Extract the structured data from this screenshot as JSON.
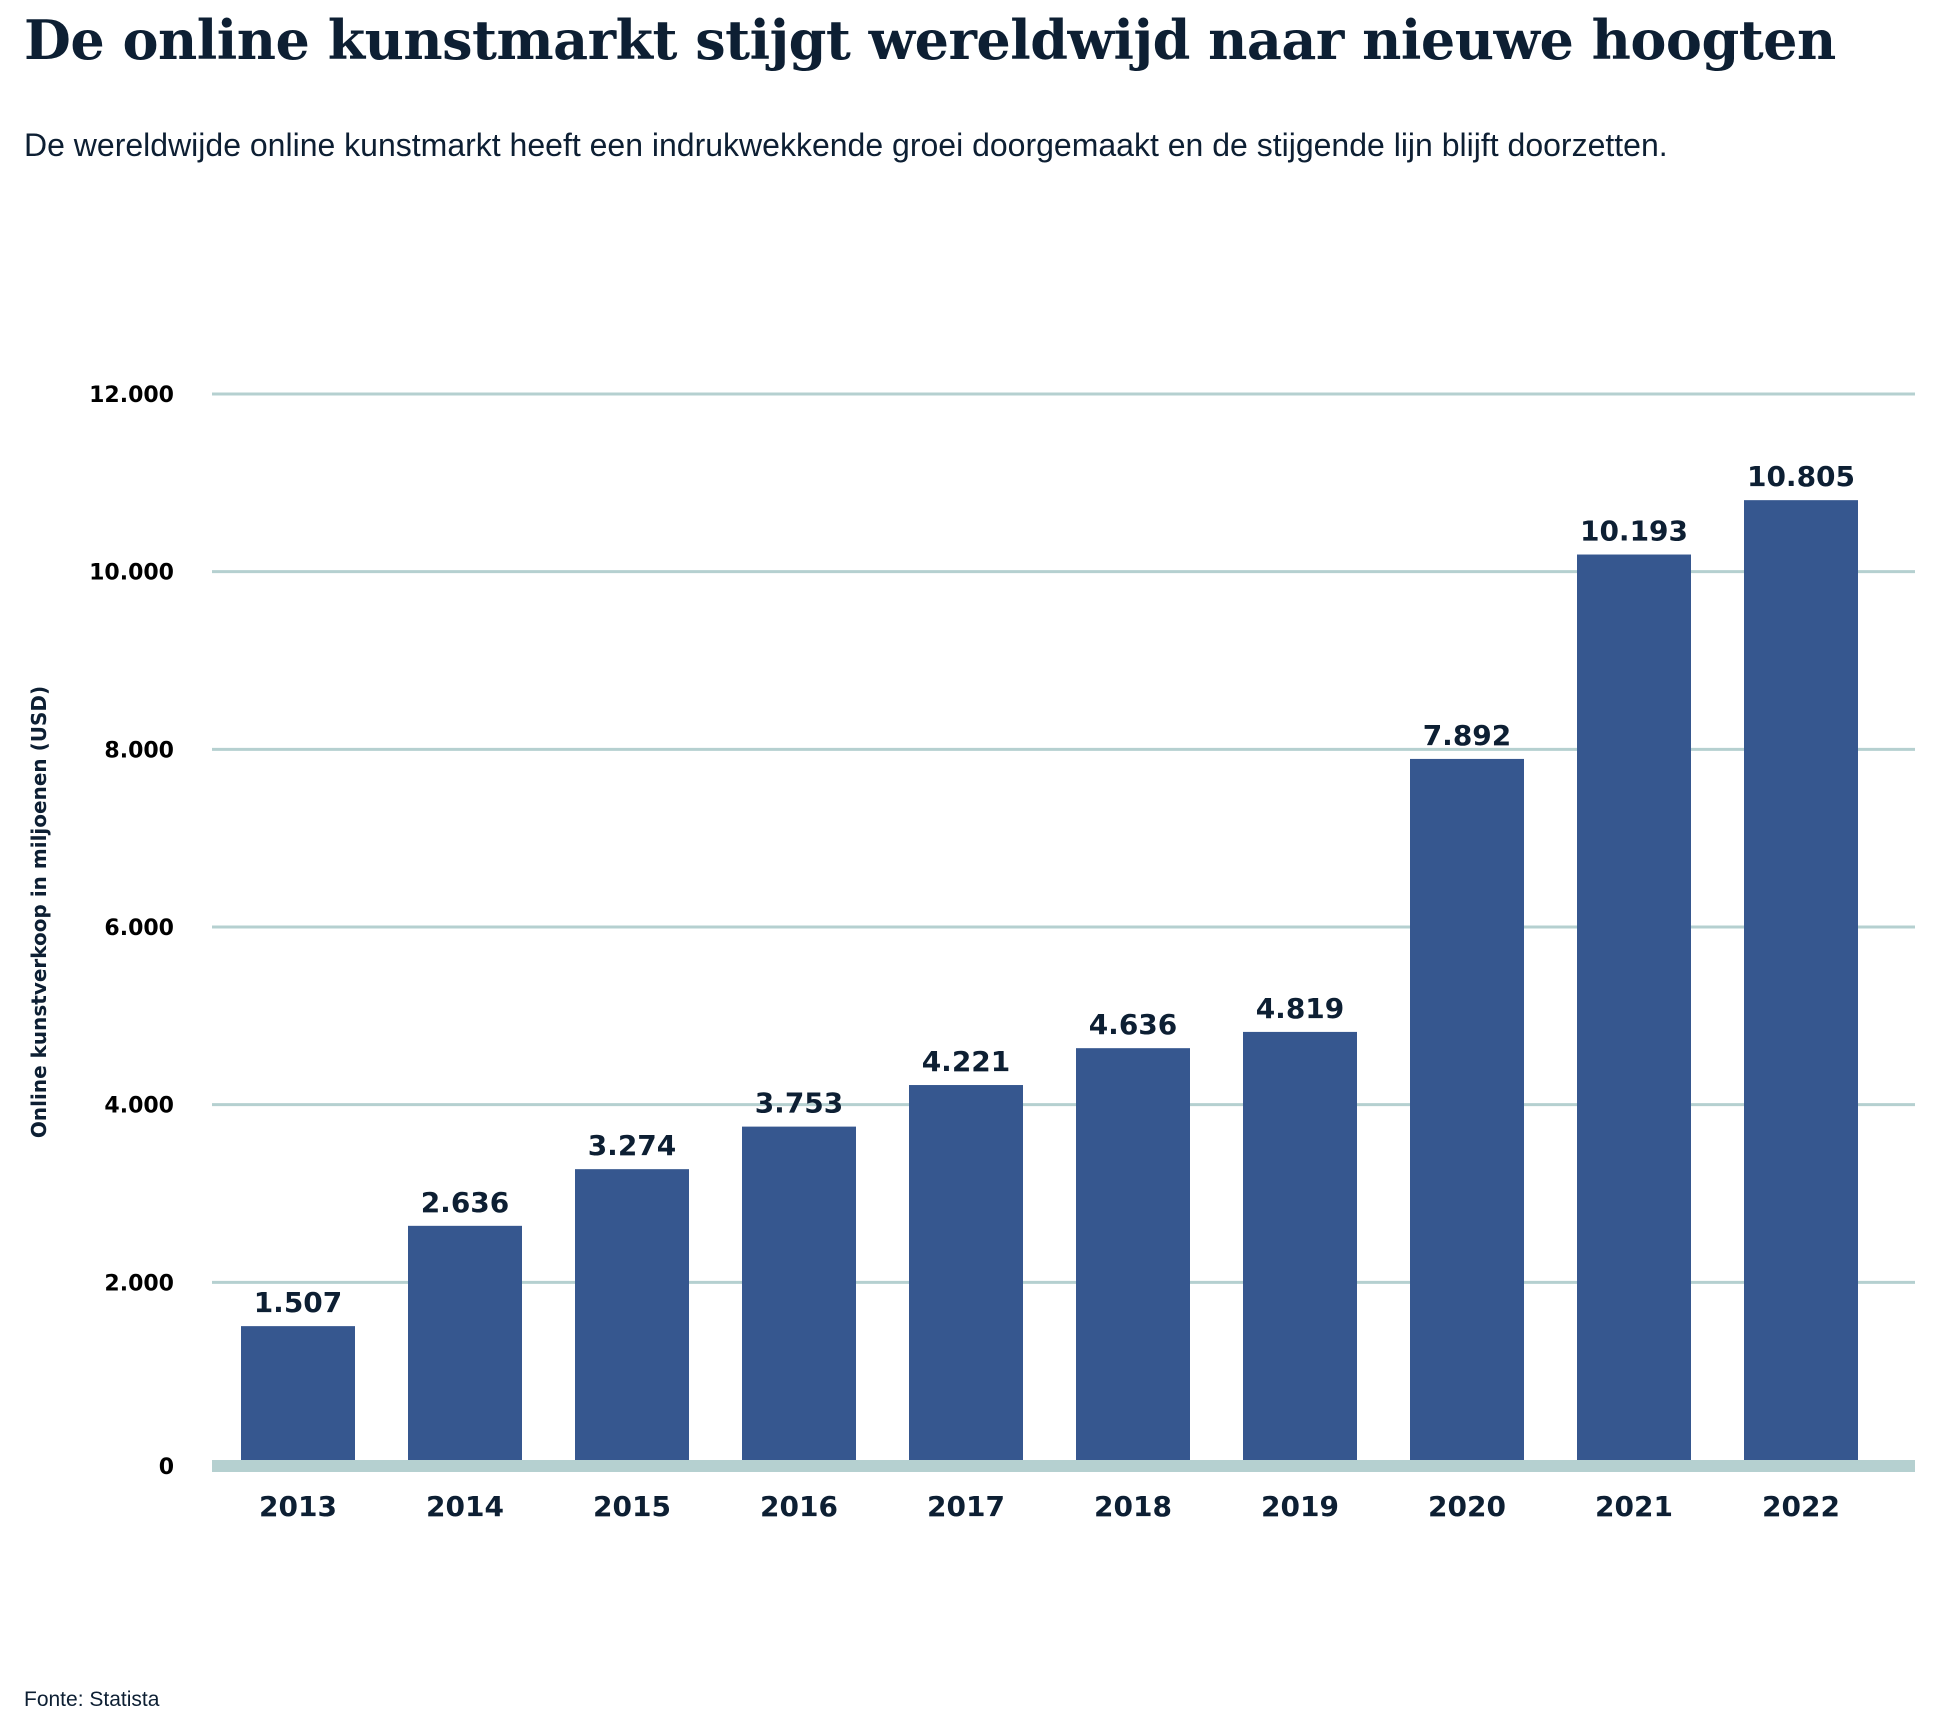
{
  "chart_data": {
    "type": "bar",
    "title": "De online kunstmarkt stijgt wereldwijd naar nieuwe hoogten",
    "subtitle": "De wereldwijde online kunstmarkt heeft een indrukwekkende groei doorgemaakt en de stijgende lijn blijft doorzetten.",
    "xlabel": "",
    "ylabel": "Online kunstverkoop in miljoenen (USD)",
    "categories": [
      "2013",
      "2014",
      "2015",
      "2016",
      "2017",
      "2018",
      "2019",
      "2020",
      "2021",
      "2022"
    ],
    "values": [
      1507,
      2636,
      3274,
      3753,
      4221,
      4636,
      4819,
      7892,
      10193,
      10805
    ],
    "data_labels": [
      "1.507",
      "2.636",
      "3.274",
      "3.753",
      "4.221",
      "4.636",
      "4.819",
      "7.892",
      "10.193",
      "10.805"
    ],
    "ylim": [
      0,
      12000
    ],
    "yticks": [
      0,
      2000,
      4000,
      6000,
      8000,
      10000,
      12000
    ],
    "ytick_labels": [
      "0",
      "2.000",
      "4.000",
      "6.000",
      "8.000",
      "10.000",
      "12.000"
    ],
    "grid": true,
    "source": "Fonte: Statista",
    "colors": {
      "bar": "#36578f",
      "grid": "#b5d0d0",
      "text": "#0d1f33"
    }
  }
}
